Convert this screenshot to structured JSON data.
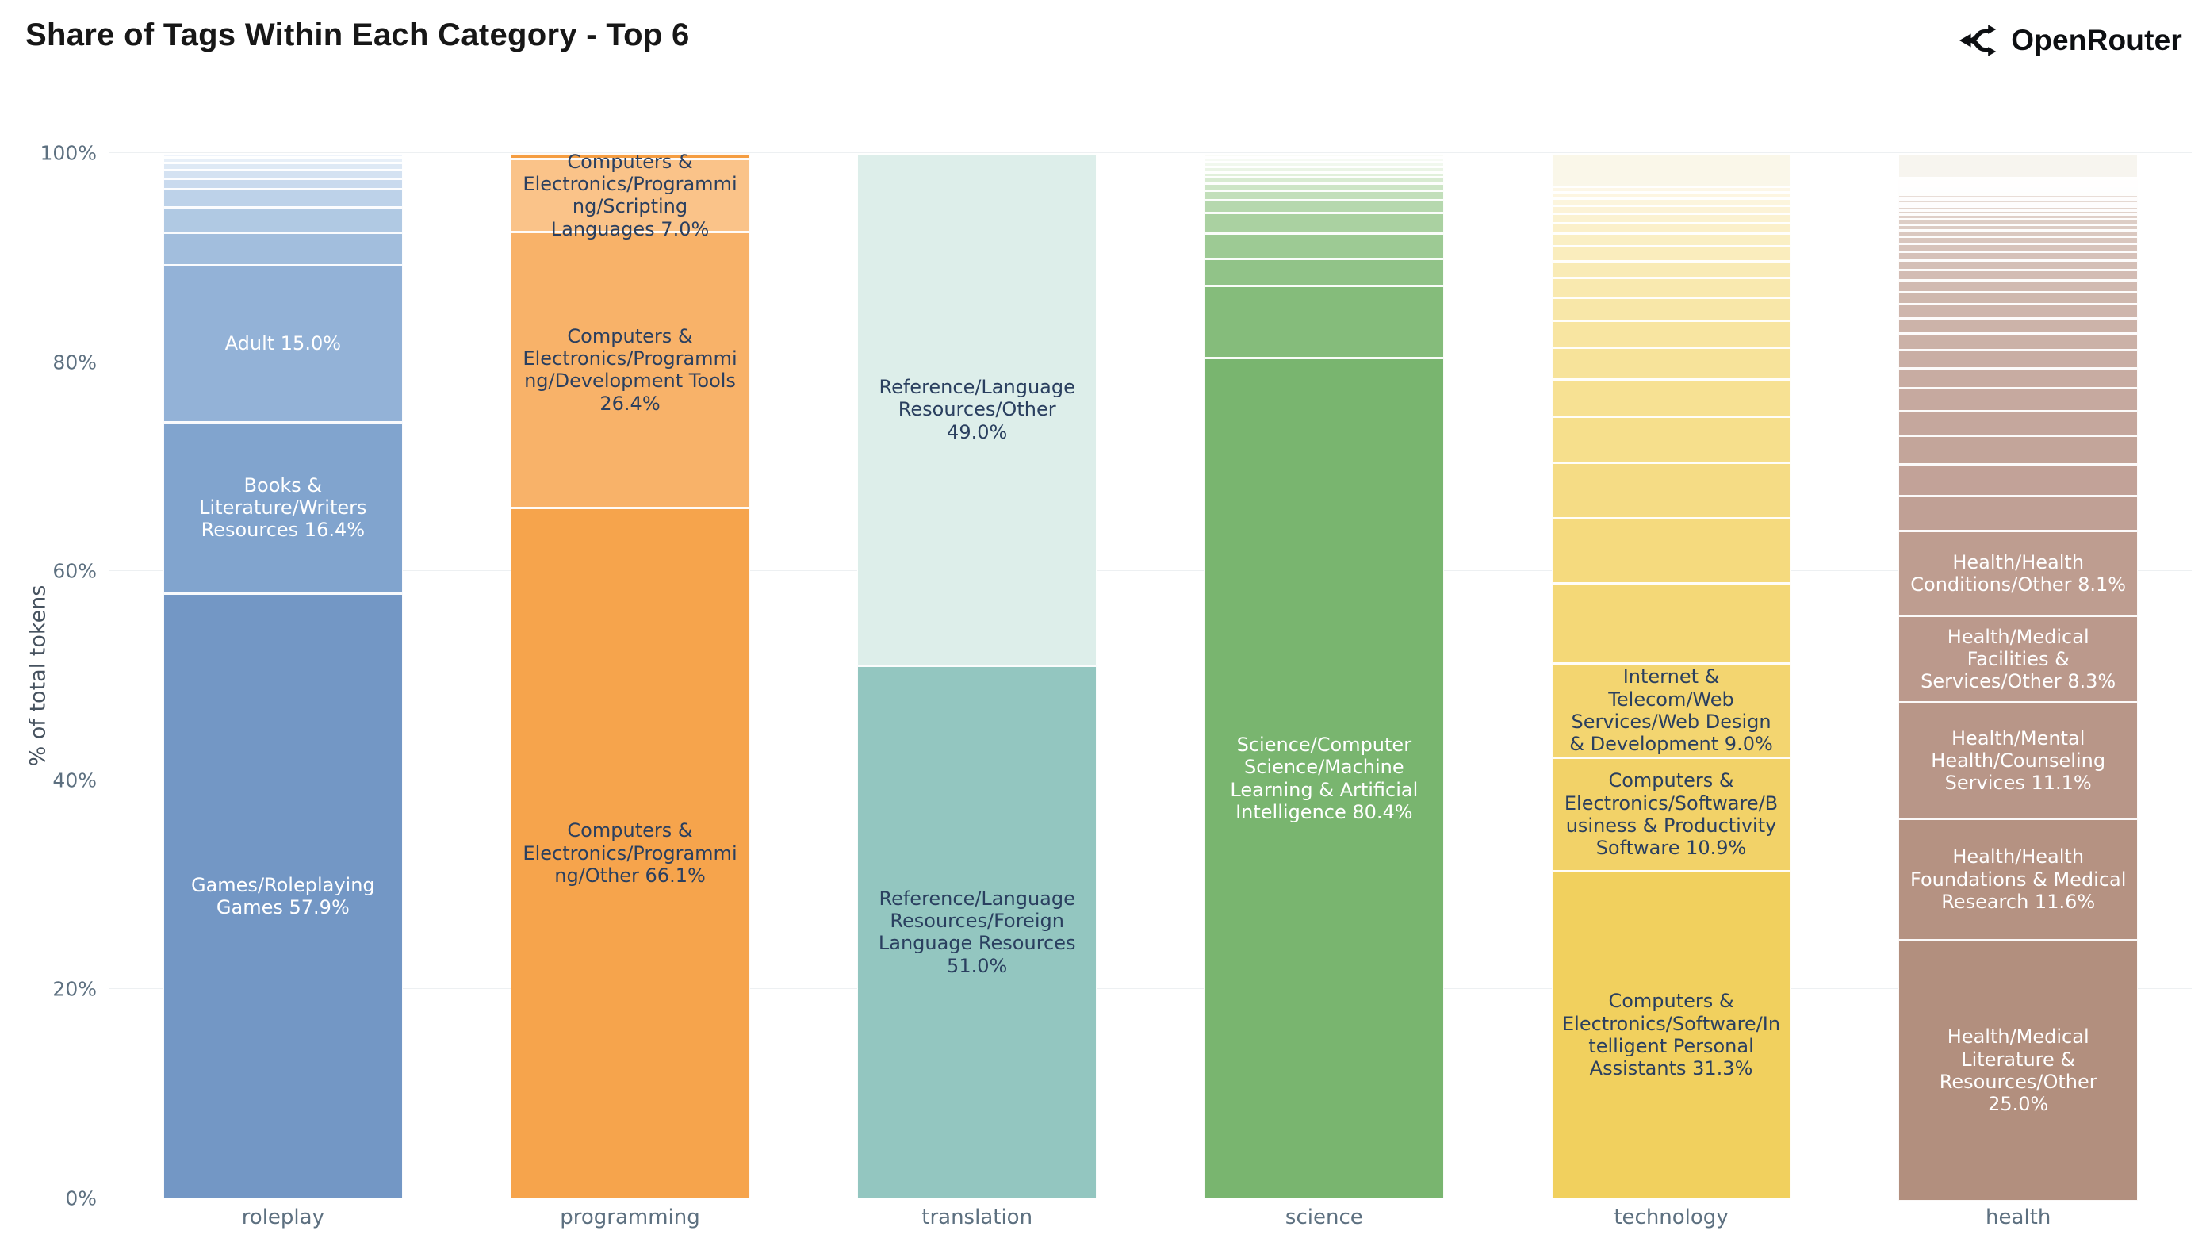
{
  "header": {
    "title": "Share of Tags Within Each Category - Top 6",
    "brand": "OpenRouter"
  },
  "colors": {
    "background": "#ffffff",
    "title_text": "#171717",
    "brand_text": "#0d0f12",
    "axis_title_text": "#46525f",
    "axis_tick_text": "#5d7080",
    "grid": "#edf0f2",
    "baseline": "#d9dee3",
    "label_dark": "#2a3f5f",
    "label_light": "#ffffff"
  },
  "axes": {
    "y_title": "% of total tokens",
    "y_ticks": [
      "0%",
      "20%",
      "40%",
      "60%",
      "80%",
      "100%"
    ],
    "x_categories": [
      "roleplay",
      "programming",
      "translation",
      "science",
      "technology",
      "health"
    ]
  },
  "chart_data": {
    "type": "bar",
    "stacked": true,
    "orientation": "vertical",
    "title": "Share of Tags Within Each Category - Top 6",
    "xlabel": "",
    "ylabel": "% of total tokens",
    "ylim": [
      0,
      100
    ],
    "grid": "horizontal",
    "legend": false,
    "categories": [
      "roleplay",
      "programming",
      "translation",
      "science",
      "technology",
      "health"
    ],
    "note": "segments listed bottom-to-top; unlabeled segments are small unannotated tags estimated from pixel heights",
    "bars": [
      {
        "category": "roleplay",
        "segments": [
          {
            "label": "Games/Roleplaying Games 57.9%",
            "name": "Games/Roleplaying Games",
            "value": 57.9,
            "color": "#7397c5",
            "text": "light"
          },
          {
            "label": "Books & Literature/Writers Resources 16.4%",
            "name": "Books & Literature/Writers Resources",
            "value": 16.4,
            "color": "#81a4ce",
            "text": "light"
          },
          {
            "label": "Adult 15.0%",
            "name": "Adult",
            "value": 15.0,
            "color": "#93b2d7",
            "text": "light"
          },
          {
            "label": "",
            "value": 3.1,
            "color": "#a2bedd"
          },
          {
            "label": "",
            "value": 2.4,
            "color": "#b0c9e3"
          },
          {
            "label": "",
            "value": 1.8,
            "color": "#bdd2e9"
          },
          {
            "label": "",
            "value": 1.0,
            "color": "#c9daee"
          },
          {
            "label": "",
            "value": 0.8,
            "color": "#d4e2f2"
          },
          {
            "label": "",
            "value": 0.7,
            "color": "#dee9f5"
          },
          {
            "label": "",
            "value": 0.5,
            "color": "#e7eff8"
          },
          {
            "label": "",
            "value": 0.4,
            "color": "#eff4fb"
          }
        ]
      },
      {
        "category": "programming",
        "segments": [
          {
            "label": "Computers & Electronics/Programming/Other 66.1%",
            "name": "Computers & Electronics/Programming/Other",
            "value": 66.1,
            "color": "#f6a44c",
            "text": "dark"
          },
          {
            "label": "Computers & Electronics/Programming/Development Tools 26.4%",
            "name": "Computers & Electronics/Programming/Development Tools",
            "value": 26.4,
            "color": "#f8b269",
            "text": "dark"
          },
          {
            "label": "Computers & Electronics/Programming/Scripting Languages 7.0%",
            "name": "Computers & Electronics/Programming/Scripting Languages",
            "value": 7.0,
            "color": "#fac389",
            "text": "dark"
          },
          {
            "label": "",
            "value": 0.5,
            "color": "#f59d41"
          }
        ]
      },
      {
        "category": "translation",
        "segments": [
          {
            "label": "Reference/Language Resources/Foreign Language Resources 51.0%",
            "name": "Reference/Language Resources/Foreign Language Resources",
            "value": 51.0,
            "color": "#93c6c0",
            "text": "dark"
          },
          {
            "label": "Reference/Language Resources/Other 49.0%",
            "name": "Reference/Language Resources/Other",
            "value": 49.0,
            "color": "#ddeeea",
            "text": "dark"
          }
        ]
      },
      {
        "category": "science",
        "segments": [
          {
            "label": "Science/Computer Science/Machine Learning & Artificial Intelligence 80.4%",
            "name": "Science/Computer Science/Machine Learning & Artificial Intelligence",
            "value": 80.4,
            "color": "#79b56f",
            "text": "light"
          },
          {
            "label": "",
            "value": 6.9,
            "color": "#85bc7b"
          },
          {
            "label": "",
            "value": 2.6,
            "color": "#91c388"
          },
          {
            "label": "",
            "value": 2.4,
            "color": "#9dca94"
          },
          {
            "label": "",
            "value": 2.0,
            "color": "#aad1a1"
          },
          {
            "label": "",
            "value": 1.2,
            "color": "#b6d8ae"
          },
          {
            "label": "",
            "value": 0.9,
            "color": "#c2dfba"
          },
          {
            "label": "",
            "value": 0.7,
            "color": "#cde5c6"
          },
          {
            "label": "",
            "value": 0.6,
            "color": "#d8ebd1"
          },
          {
            "label": "",
            "value": 0.5,
            "color": "#e1f0db"
          },
          {
            "label": "",
            "value": 0.5,
            "color": "#eaf4e5"
          },
          {
            "label": "",
            "value": 0.5,
            "color": "#f1f8ee"
          },
          {
            "label": "",
            "value": 0.45,
            "color": "#f6faf4"
          },
          {
            "label": "",
            "value": 0.35,
            "color": "#fafcf8"
          }
        ]
      },
      {
        "category": "technology",
        "segments": [
          {
            "label": "Computers & Electronics/Software/Intelligent Personal Assistants 31.3%",
            "name": "Computers & Electronics/Software/Intelligent Personal Assistants",
            "value": 31.3,
            "color": "#f1d05e",
            "text": "dark"
          },
          {
            "label": "Computers & Electronics/Software/Business & Productivity Software 10.9%",
            "name": "Computers & Electronics/Software/Business & Productivity Software",
            "value": 10.9,
            "color": "#f2d268",
            "text": "dark"
          },
          {
            "label": "Internet & Telecom/Web Services/Web Design & Development 9.0%",
            "name": "Internet & Telecom/Web Services/Web Design & Development",
            "value": 9.0,
            "color": "#f3d570",
            "text": "dark"
          },
          {
            "label": "",
            "value": 7.7,
            "color": "#f4d877"
          },
          {
            "label": "",
            "value": 6.2,
            "color": "#f5da7e"
          },
          {
            "label": "",
            "value": 5.3,
            "color": "#f5dc85"
          },
          {
            "label": "",
            "value": 4.4,
            "color": "#f6df8c"
          },
          {
            "label": "",
            "value": 3.6,
            "color": "#f7e193"
          },
          {
            "label": "",
            "value": 3.0,
            "color": "#f7e39a"
          },
          {
            "label": "",
            "value": 2.6,
            "color": "#f8e5a1"
          },
          {
            "label": "",
            "value": 2.2,
            "color": "#f8e7a8"
          },
          {
            "label": "",
            "value": 1.9,
            "color": "#f9e9af"
          },
          {
            "label": "",
            "value": 1.6,
            "color": "#f9ebb6"
          },
          {
            "label": "",
            "value": 1.4,
            "color": "#faedbd"
          },
          {
            "label": "",
            "value": 1.2,
            "color": "#faefc4"
          },
          {
            "label": "",
            "value": 1.0,
            "color": "#fbf0ca"
          },
          {
            "label": "",
            "value": 0.9,
            "color": "#fbf2d1"
          },
          {
            "label": "",
            "value": 0.8,
            "color": "#fcf3d7"
          },
          {
            "label": "",
            "value": 0.7,
            "color": "#fcf5dd"
          },
          {
            "label": "",
            "value": 0.6,
            "color": "#fdf6e2"
          },
          {
            "label": "",
            "value": 0.5,
            "color": "#fdf7e7"
          },
          {
            "label": "",
            "value": 3.2,
            "color": "#faf7e9"
          }
        ]
      },
      {
        "category": "health",
        "ramp": {
          "from": "#c0a095",
          "to": "#f3eee9"
        },
        "segments": [
          {
            "label": "Health/Medical Literature & Resources/Other 25.0%",
            "name": "Health/Medical Literature & Resources/Other",
            "value": 25.0,
            "color": "#b28f7e",
            "text": "light"
          },
          {
            "label": "Health/Health Foundations & Medical Research 11.6%",
            "name": "Health/Health Foundations & Medical Research",
            "value": 11.6,
            "color": "#b59282",
            "text": "light"
          },
          {
            "label": "Health/Mental Health/Counseling Services 11.1%",
            "name": "Health/Mental Health/Counseling Services",
            "value": 11.1,
            "color": "#b89688",
            "text": "light"
          },
          {
            "label": "Health/Medical Facilities & Services/Other 8.3%",
            "name": "Health/Medical Facilities & Services/Other",
            "value": 8.3,
            "color": "#bb998c",
            "text": "light"
          },
          {
            "label": "Health/Health Conditions/Other 8.1%",
            "name": "Health/Health Conditions/Other",
            "value": 8.1,
            "color": "#be9d90",
            "text": "light"
          },
          {
            "label": "",
            "value": 3.4
          },
          {
            "label": "",
            "value": 3.0
          },
          {
            "label": "",
            "value": 2.7
          },
          {
            "label": "",
            "value": 2.4
          },
          {
            "label": "",
            "value": 2.15
          },
          {
            "label": "",
            "value": 1.95
          },
          {
            "label": "",
            "value": 1.75
          },
          {
            "label": "",
            "value": 1.6
          },
          {
            "label": "",
            "value": 1.45
          },
          {
            "label": "",
            "value": 1.3
          },
          {
            "label": "",
            "value": 1.2
          },
          {
            "label": "",
            "value": 1.1
          },
          {
            "label": "",
            "value": 1.0
          },
          {
            "label": "",
            "value": 0.9
          },
          {
            "label": "",
            "value": 0.82
          },
          {
            "label": "",
            "value": 0.75
          },
          {
            "label": "",
            "value": 0.68
          },
          {
            "label": "",
            "value": 0.62
          },
          {
            "label": "",
            "value": 0.56
          },
          {
            "label": "",
            "value": 0.5
          },
          {
            "label": "",
            "value": 0.45
          },
          {
            "label": "",
            "value": 0.4
          },
          {
            "label": "",
            "value": 0.36
          },
          {
            "label": "",
            "value": 0.33
          },
          {
            "label": "",
            "value": 0.3
          },
          {
            "label": "",
            "value": 0.27
          },
          {
            "label": "",
            "value": 0.25
          },
          {
            "label": "",
            "value": 0.23
          },
          {
            "label": "",
            "value": 0.21
          },
          {
            "label": "",
            "value": 0.2
          },
          {
            "label": "",
            "value": 0.19
          },
          {
            "label": "",
            "value": 0.18
          },
          {
            "label": "",
            "value": 0.17
          },
          {
            "label": "",
            "value": 0.16
          },
          {
            "label": "",
            "value": 2.37,
            "color": "#f7f5ef"
          }
        ]
      }
    ]
  }
}
